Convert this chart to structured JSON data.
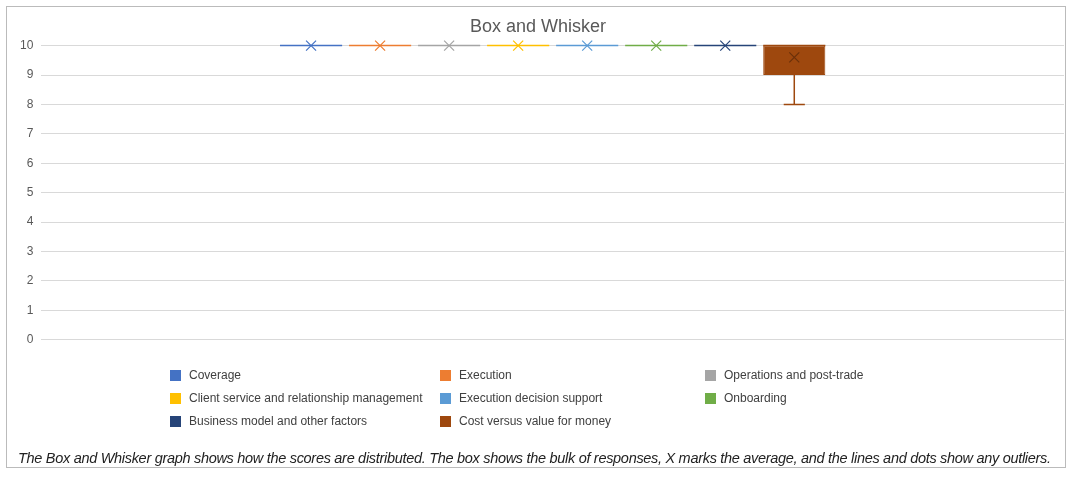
{
  "chart_data": {
    "type": "box",
    "title": "Box and Whisker",
    "categories": [
      null
    ],
    "series": [
      {
        "name": "Coverage",
        "color": "#4472c4",
        "boxes": [
          {
            "low": 10,
            "q1": 10,
            "median": 10,
            "q3": 10,
            "high": 10,
            "mean": 10
          }
        ]
      },
      {
        "name": "Execution",
        "color": "#ed7d31",
        "boxes": [
          {
            "low": 10,
            "q1": 10,
            "median": 10,
            "q3": 10,
            "high": 10,
            "mean": 10
          }
        ]
      },
      {
        "name": "Operations and post-trade",
        "color": "#a5a5a5",
        "boxes": [
          {
            "low": 10,
            "q1": 10,
            "median": 10,
            "q3": 10,
            "high": 10,
            "mean": 10
          }
        ]
      },
      {
        "name": "Client service and relationship management",
        "color": "#ffc000",
        "boxes": [
          {
            "low": 10,
            "q1": 10,
            "median": 10,
            "q3": 10,
            "high": 10,
            "mean": 10
          }
        ]
      },
      {
        "name": "Execution decision support",
        "color": "#5b9bd5",
        "boxes": [
          {
            "low": 10,
            "q1": 10,
            "median": 10,
            "q3": 10,
            "high": 10,
            "mean": 10
          }
        ]
      },
      {
        "name": "Onboarding",
        "color": "#70ad47",
        "boxes": [
          {
            "low": 10,
            "q1": 10,
            "median": 10,
            "q3": 10,
            "high": 10,
            "mean": 10
          }
        ]
      },
      {
        "name": "Business model and other factors",
        "color": "#264478",
        "boxes": [
          {
            "low": 10,
            "q1": 10,
            "median": 10,
            "q3": 10,
            "high": 10,
            "mean": 10
          }
        ]
      },
      {
        "name": "Cost versus value for money",
        "color": "#9e480e",
        "boxes": [
          {
            "low": 8,
            "q1": 9,
            "median": 10,
            "q3": 10,
            "high": 10,
            "mean": 9.6
          }
        ]
      }
    ],
    "ylim": [
      0,
      10
    ],
    "yticks": [
      0,
      1,
      2,
      3,
      4,
      5,
      6,
      7,
      8,
      9,
      10
    ],
    "grid": "y",
    "legend": "bottom",
    "tick_labels": "y",
    "annotations": [
      "The Box and Whisker graph shows how the scores are distributed. The box shows the bulk of responses, X marks the average, and the lines and dots show any outliers."
    ]
  }
}
